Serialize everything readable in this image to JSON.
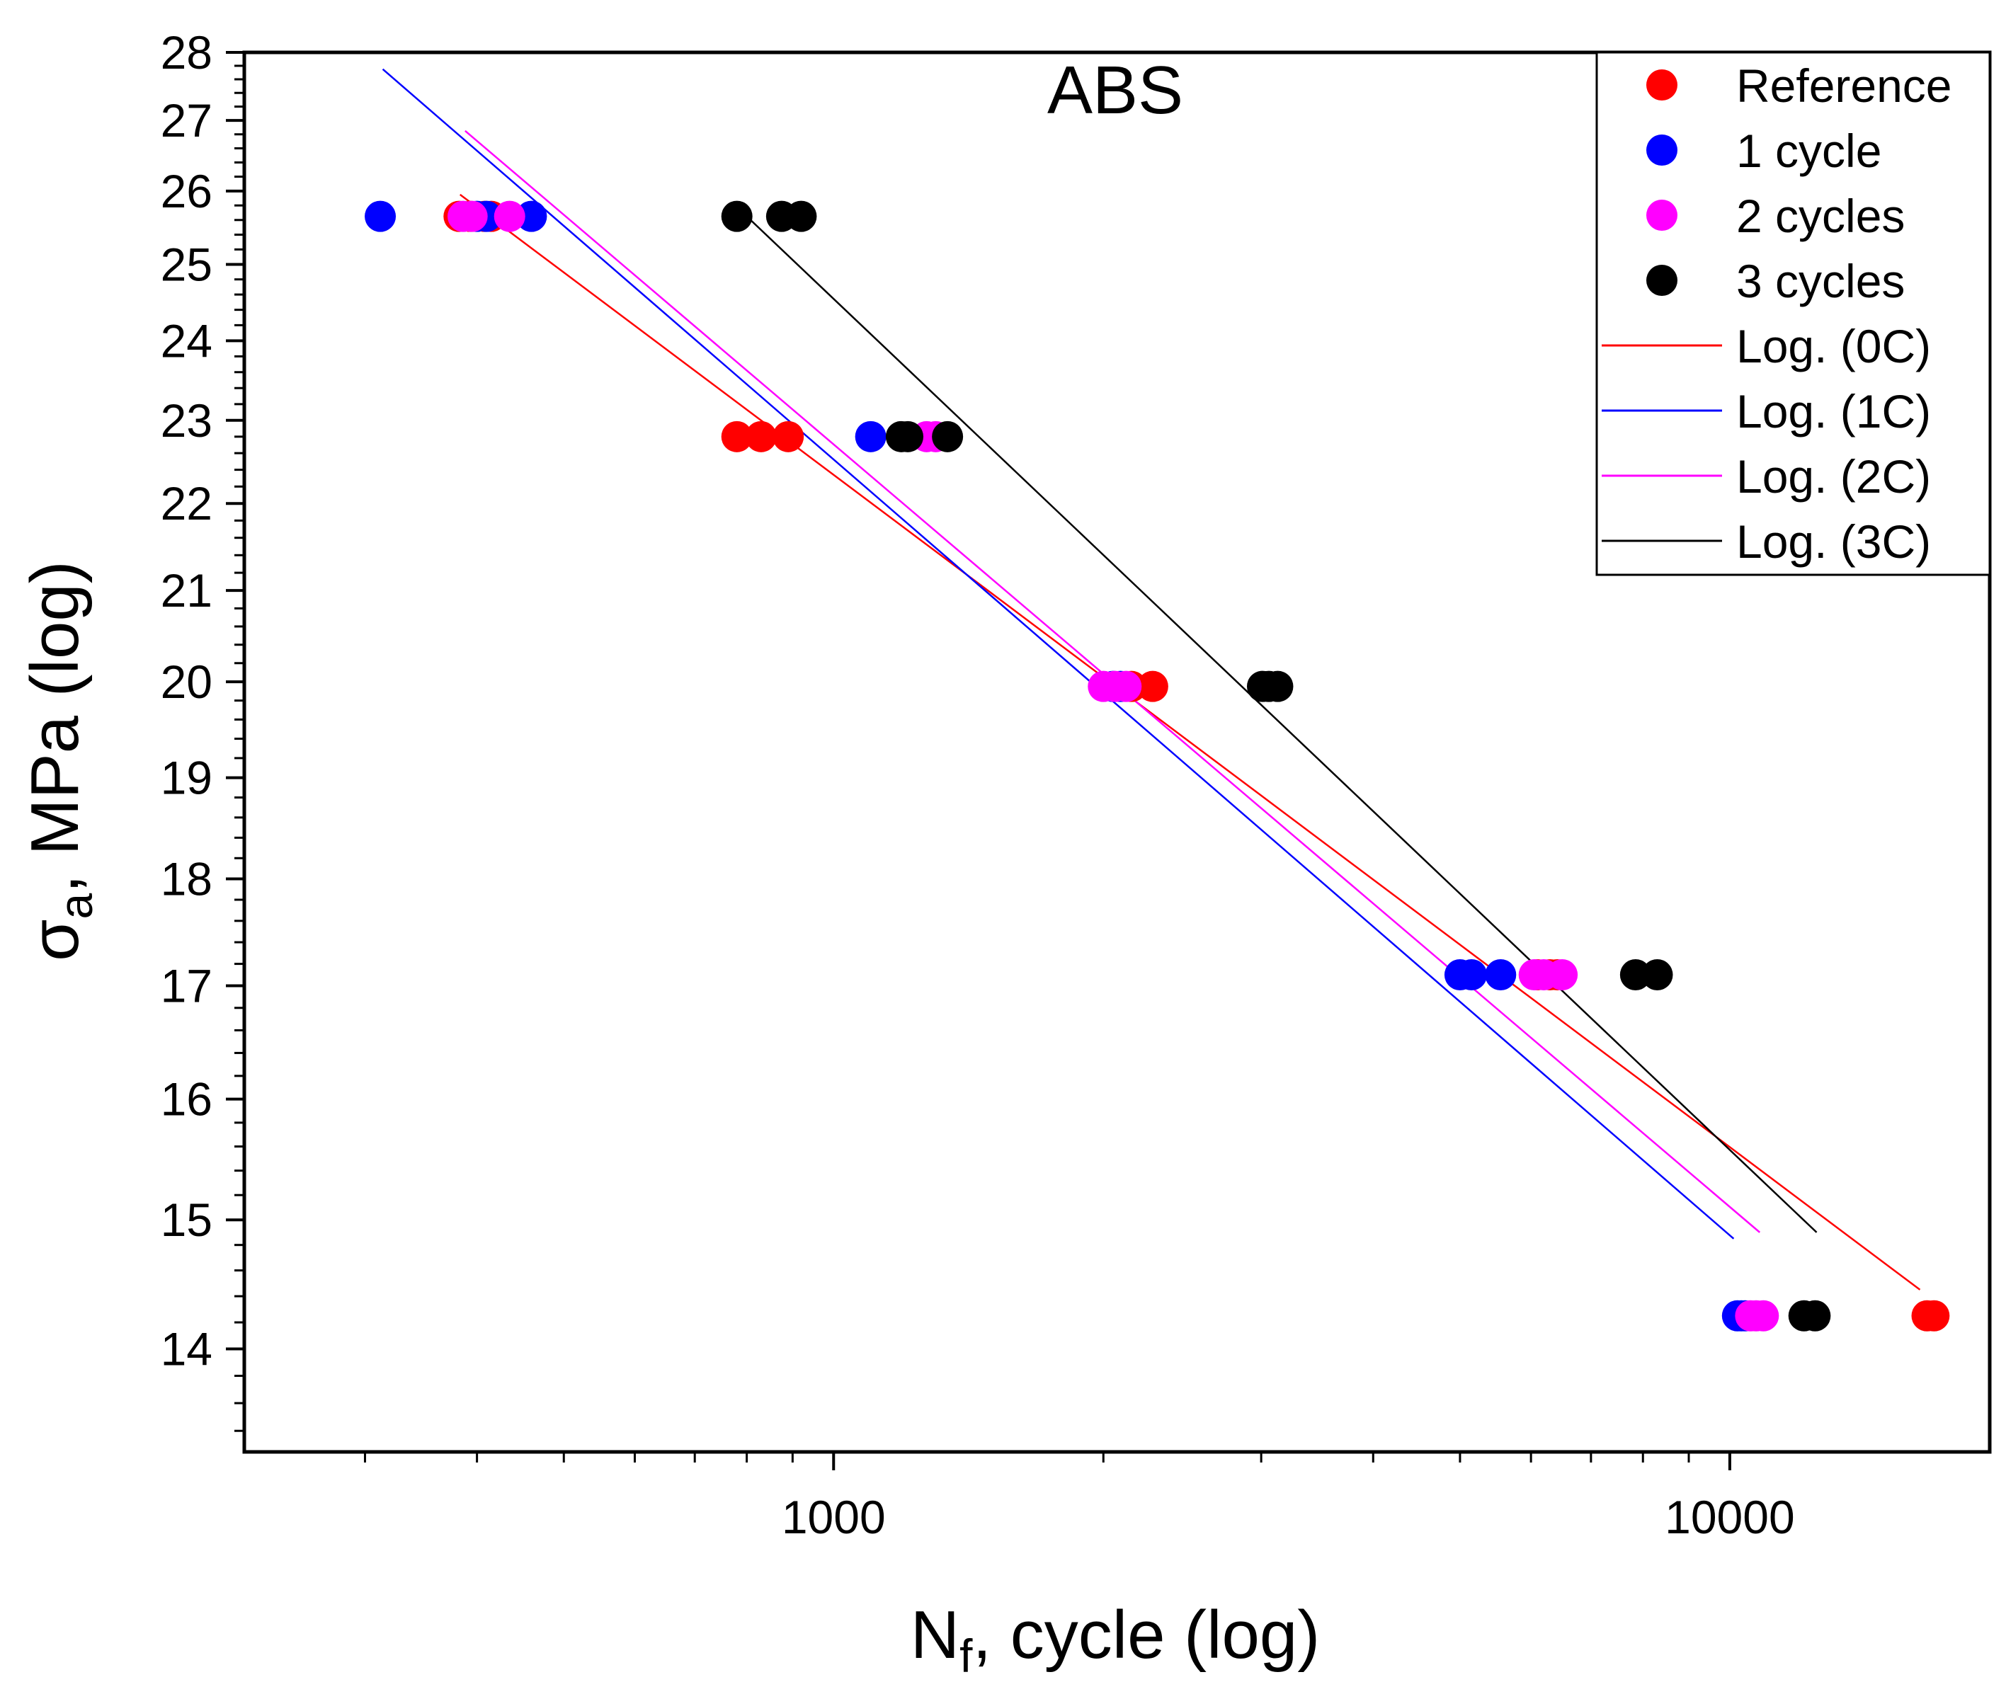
{
  "chart_data": {
    "type": "scatter",
    "title": "ABS",
    "xlabel": {
      "main": "N",
      "sub": "f",
      "rest": ", cycle (log)"
    },
    "ylabel": {
      "main": "σ",
      "sub": "a",
      "rest": ", MPa (log)"
    },
    "x_scale": "log",
    "y_scale": "log",
    "xlim": [
      220,
      19500
    ],
    "ylim": [
      13.25,
      28
    ],
    "x_ticks": [
      1000,
      10000
    ],
    "x_tick_labels": [
      "1000",
      "10000"
    ],
    "y_ticks": [
      14,
      15,
      16,
      17,
      18,
      19,
      20,
      21,
      22,
      23,
      24,
      25,
      26,
      27,
      28
    ],
    "y_tick_labels": [
      "14",
      "15",
      "16",
      "17",
      "18",
      "19",
      "20",
      "21",
      "22",
      "23",
      "24",
      "25",
      "26",
      "27",
      "28"
    ],
    "series": [
      {
        "name": "Reference",
        "color": "#ff0000",
        "points": [
          [
            382,
            25.65
          ],
          [
            393,
            25.65
          ],
          [
            408,
            25.65
          ],
          [
            415,
            25.65
          ],
          [
            780,
            22.8
          ],
          [
            830,
            22.8
          ],
          [
            890,
            22.8
          ],
          [
            2150,
            19.95
          ],
          [
            2270,
            19.95
          ],
          [
            6100,
            17.1
          ],
          [
            6300,
            17.1
          ],
          [
            6420,
            17.1
          ],
          [
            16600,
            14.25
          ],
          [
            16900,
            14.25
          ]
        ]
      },
      {
        "name": "1 cycle",
        "color": "#0000ff",
        "points": [
          [
            312,
            25.65
          ],
          [
            400,
            25.65
          ],
          [
            410,
            25.65
          ],
          [
            460,
            25.65
          ],
          [
            1100,
            22.8
          ],
          [
            2050,
            19.95
          ],
          [
            2090,
            19.95
          ],
          [
            5000,
            17.1
          ],
          [
            5150,
            17.1
          ],
          [
            5550,
            17.1
          ],
          [
            10200,
            14.25
          ],
          [
            10300,
            14.25
          ],
          [
            10400,
            14.25
          ]
        ]
      },
      {
        "name": "2 cycles",
        "color": "#ff00ff",
        "points": [
          [
            386,
            25.65
          ],
          [
            395,
            25.65
          ],
          [
            435,
            25.65
          ],
          [
            1270,
            22.8
          ],
          [
            1300,
            22.8
          ],
          [
            2000,
            19.95
          ],
          [
            2060,
            19.95
          ],
          [
            2120,
            19.95
          ],
          [
            6050,
            17.1
          ],
          [
            6200,
            17.1
          ],
          [
            6500,
            17.1
          ],
          [
            10550,
            14.25
          ],
          [
            10700,
            14.25
          ],
          [
            10900,
            14.25
          ]
        ]
      },
      {
        "name": "3 cycles",
        "color": "#000000",
        "points": [
          [
            780,
            25.65
          ],
          [
            875,
            25.65
          ],
          [
            920,
            25.65
          ],
          [
            1190,
            22.8
          ],
          [
            1210,
            22.8
          ],
          [
            1340,
            22.8
          ],
          [
            3010,
            19.95
          ],
          [
            3060,
            19.95
          ],
          [
            3130,
            19.95
          ],
          [
            7850,
            17.1
          ],
          [
            8300,
            17.1
          ],
          [
            12100,
            14.25
          ],
          [
            12450,
            14.25
          ]
        ]
      }
    ],
    "trendlines": [
      {
        "name": "Log. (0C)",
        "color": "#ff0000",
        "from": [
          383,
          25.95
        ],
        "to": [
          16300,
          14.45
        ]
      },
      {
        "name": "Log. (1C)",
        "color": "#0000ff",
        "from": [
          314,
          27.75
        ],
        "to": [
          10100,
          14.85
        ]
      },
      {
        "name": "Log. (2C)",
        "color": "#ff00ff",
        "from": [
          388,
          26.85
        ],
        "to": [
          10800,
          14.9
        ]
      },
      {
        "name": "Log. (3C)",
        "color": "#000000",
        "from": [
          800,
          25.65
        ],
        "to": [
          12500,
          14.9
        ]
      }
    ],
    "legend_position": "top-right"
  }
}
